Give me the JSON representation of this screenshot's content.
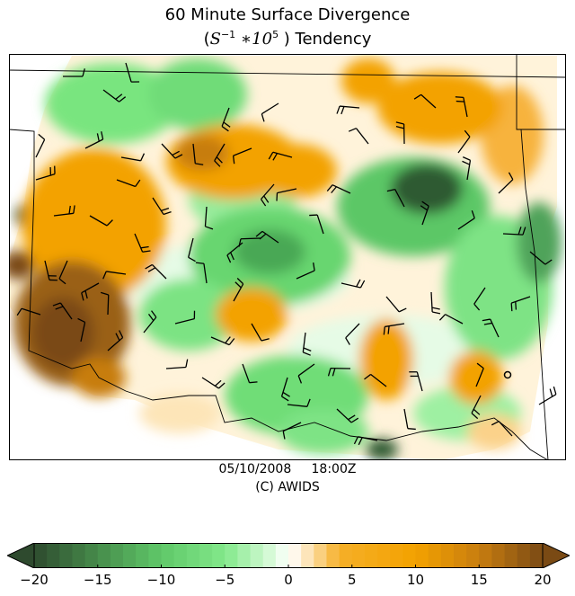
{
  "title": "60 Minute Surface Divergence",
  "subtitle_pre": "(",
  "subtitle_math": "S",
  "subtitle_exp1": "−1",
  "subtitle_mid": " ∗10",
  "subtitle_exp2": "5",
  "subtitle_post": " ) Tendency",
  "date": "05/10/2008",
  "time": "18:00Z",
  "credit": "(C) AWIDS",
  "colorbar": {
    "ticks": [
      "−20",
      "−15",
      "−10",
      "−5",
      "0",
      "5",
      "10",
      "15",
      "20"
    ],
    "range": [
      -20,
      20
    ],
    "extend": "both",
    "colors": {
      "strong_convergence": "#2e4a2e",
      "convergence": "#6fe07a",
      "neutral": "#ffffff",
      "divergence": "#f5a400",
      "strong_divergence": "#7a4a14"
    }
  }
}
